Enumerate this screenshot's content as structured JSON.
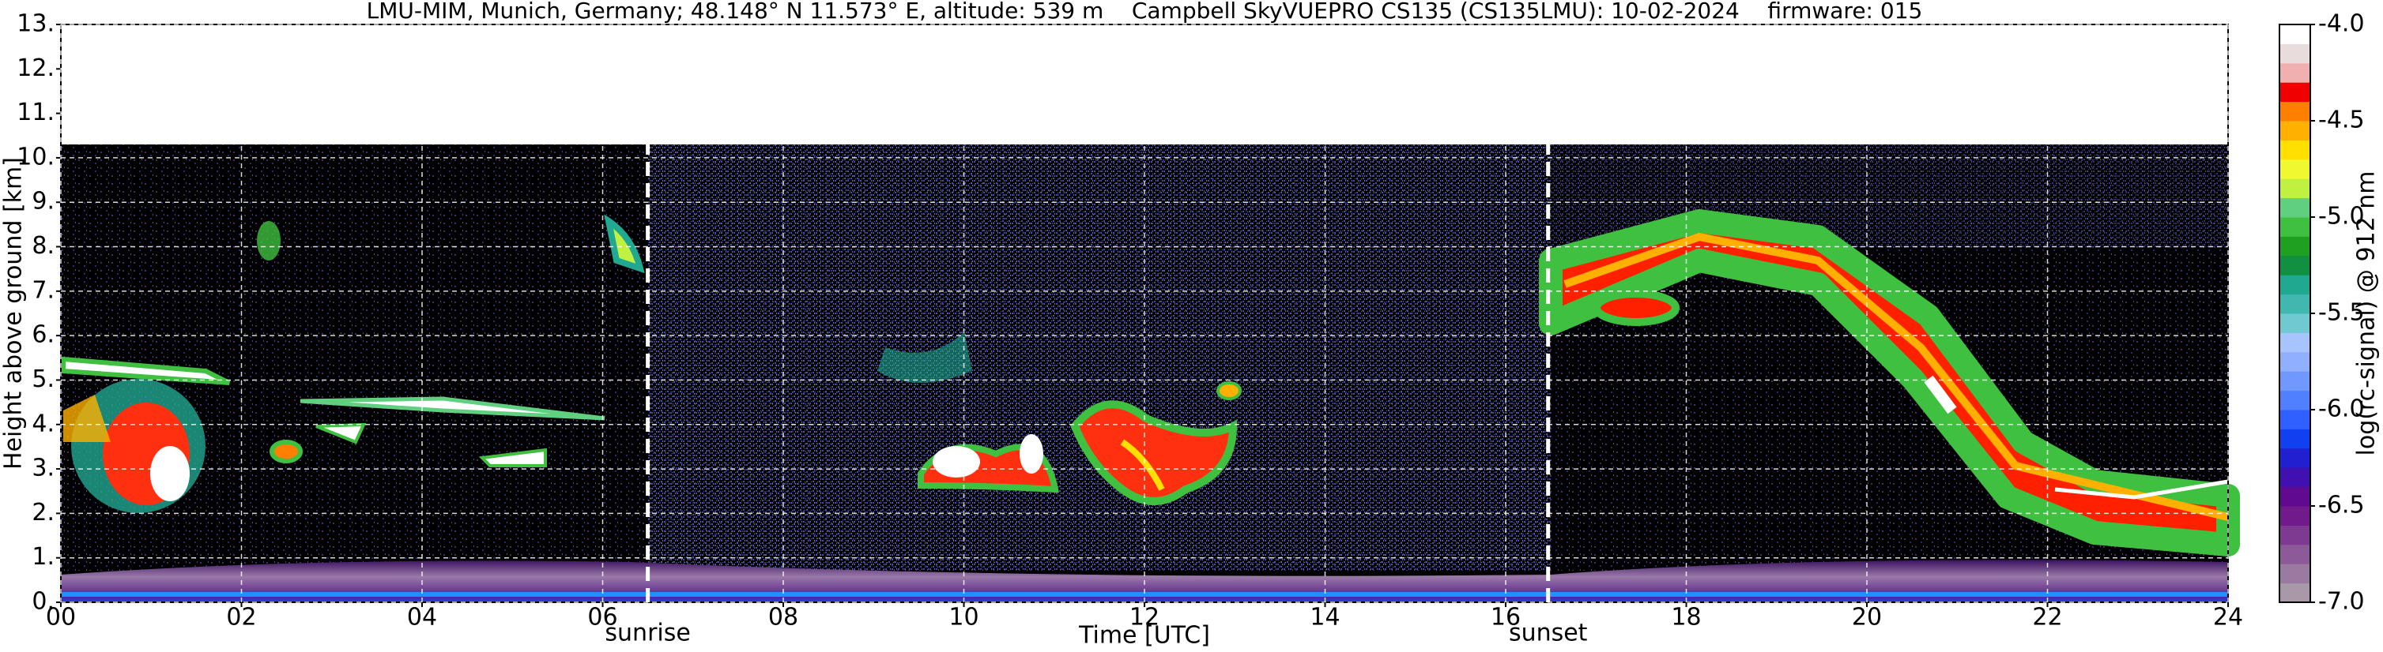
{
  "chart_data": {
    "type": "heatmap",
    "title": "LMU-MIM, Munich, Germany; 48.148° N 11.573° E, altitude: 539 m    Campbell SkyVUEPRO CS135 (CS135LMU): 10-02-2024    firmware: 015",
    "x_label": "Time [UTC]",
    "y_label": "Height above ground [km]",
    "xlim": [
      0,
      24
    ],
    "xticks": [
      {
        "value": 0,
        "label": "00"
      },
      {
        "value": 2,
        "label": "02"
      },
      {
        "value": 4,
        "label": "04"
      },
      {
        "value": 6,
        "label": "06"
      },
      {
        "value": 8,
        "label": "08"
      },
      10,
      12,
      14,
      16,
      18,
      20,
      22,
      24
    ],
    "ylim": [
      0,
      13
    ],
    "yticks": [
      {
        "value": 0,
        "label": "0."
      },
      {
        "value": 1,
        "label": "1."
      },
      {
        "value": 2,
        "label": "2."
      },
      {
        "value": 3,
        "label": "3."
      },
      {
        "value": 4,
        "label": "4."
      },
      {
        "value": 5,
        "label": "5."
      },
      {
        "value": 6,
        "label": "6."
      },
      {
        "value": 7,
        "label": "7."
      },
      {
        "value": 8,
        "label": "8."
      },
      {
        "value": 9,
        "label": "9."
      },
      {
        "value": 10,
        "label": "10."
      },
      {
        "value": 11,
        "label": "11."
      },
      {
        "value": 12,
        "label": "12."
      },
      {
        "value": 13,
        "label": "13."
      }
    ],
    "grid": true,
    "annotations": [
      {
        "text": "sunrise",
        "x": 6.5
      },
      {
        "text": "sunset",
        "x": 16.47
      }
    ],
    "colorbar": {
      "label": "log(rc-signal) @ 912 nm",
      "lim": [
        -7,
        -4
      ],
      "ticks": [
        {
          "value": -4,
          "label": "-4.0"
        },
        -4.5,
        {
          "value": -5,
          "label": "-5.0"
        },
        -5.5,
        {
          "value": -6,
          "label": "-6.0"
        },
        -6.5,
        {
          "value": -7,
          "label": "-7.0"
        }
      ],
      "colors": [
        "#a898a8",
        "#9a7aa0",
        "#8c5a98",
        "#7e3a90",
        "#701a8c",
        "#600a90",
        "#4010b0",
        "#2020d0",
        "#1040f0",
        "#3060ff",
        "#5080ff",
        "#7098ff",
        "#90b0ff",
        "#a8c4ff",
        "#70c8d0",
        "#40b8b0",
        "#20a890",
        "#109040",
        "#20a020",
        "#40c040",
        "#60d080",
        "#c0f040",
        "#f0f830",
        "#ffe000",
        "#ffb000",
        "#ff8000",
        "#f00000",
        "#f0b0b0",
        "#e8dcdc",
        "#ffffff"
      ]
    }
  }
}
